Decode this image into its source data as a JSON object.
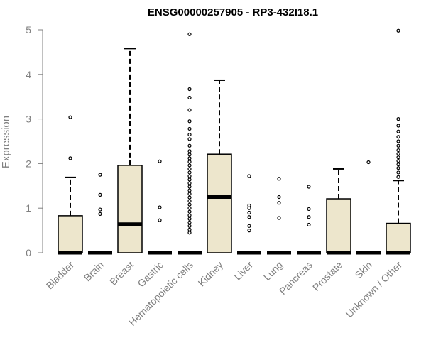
{
  "chart_data": {
    "type": "boxplot",
    "title": "ENSG00000257905 - RP3-432I18.1",
    "ylabel": "Expression",
    "xlabel": "",
    "ylim": [
      0,
      5
    ],
    "yticks": [
      "0",
      "1",
      "2",
      "3",
      "4",
      "5"
    ],
    "grid": false,
    "colors": {
      "box_fill": "#ede6cc",
      "box_stroke": "#000000",
      "median": "#000000",
      "axis": "#808080"
    },
    "categories": [
      "Bladder",
      "Brain",
      "Breast",
      "Gastric",
      "Hematopoietic cells",
      "Kidney",
      "Liver",
      "Lung",
      "Pancreas",
      "Prostate",
      "Skin",
      "Unknown / Other"
    ],
    "boxes": [
      {
        "q1": 0,
        "median": 0,
        "q3": 0.83,
        "whisker_low": 0,
        "whisker_high": 1.69,
        "outliers": [
          2.12,
          3.04
        ]
      },
      {
        "q1": 0,
        "median": 0,
        "q3": 0,
        "whisker_low": 0,
        "whisker_high": 0,
        "outliers": [
          0.87,
          0.97,
          1.3,
          1.75
        ]
      },
      {
        "q1": 0,
        "median": 0.64,
        "q3": 1.96,
        "whisker_low": 0,
        "whisker_high": 4.58,
        "outliers": []
      },
      {
        "q1": 0,
        "median": 0,
        "q3": 0,
        "whisker_low": 0,
        "whisker_high": 0,
        "outliers": [
          0.73,
          1.02,
          2.05
        ]
      },
      {
        "q1": 0,
        "median": 0,
        "q3": 0,
        "whisker_low": 0,
        "whisker_high": 0,
        "outliers": [
          0.45,
          0.52,
          0.6,
          0.68,
          0.76,
          0.84,
          0.92,
          1.0,
          1.08,
          1.16,
          1.24,
          1.32,
          1.4,
          1.48,
          1.56,
          1.64,
          1.72,
          1.8,
          1.88,
          1.96,
          2.04,
          2.12,
          2.2,
          2.28,
          2.4,
          2.55,
          2.65,
          2.78,
          2.95,
          3.2,
          3.48,
          3.67,
          4.9
        ]
      },
      {
        "q1": 0,
        "median": 1.25,
        "q3": 2.21,
        "whisker_low": 0,
        "whisker_high": 3.87,
        "outliers": []
      },
      {
        "q1": 0,
        "median": 0,
        "q3": 0,
        "whisker_low": 0,
        "whisker_high": 0,
        "outliers": [
          0.5,
          0.6,
          0.8,
          0.9,
          1.0,
          1.06,
          1.72
        ]
      },
      {
        "q1": 0,
        "median": 0,
        "q3": 0,
        "whisker_low": 0,
        "whisker_high": 0,
        "outliers": [
          0.78,
          1.12,
          1.25,
          1.66
        ]
      },
      {
        "q1": 0,
        "median": 0,
        "q3": 0,
        "whisker_low": 0,
        "whisker_high": 0,
        "outliers": [
          0.63,
          0.8,
          0.98,
          1.48
        ]
      },
      {
        "q1": 0,
        "median": 0,
        "q3": 1.21,
        "whisker_low": 0,
        "whisker_high": 1.88,
        "outliers": []
      },
      {
        "q1": 0,
        "median": 0,
        "q3": 0,
        "whisker_low": 0,
        "whisker_high": 0,
        "outliers": [
          2.03
        ]
      },
      {
        "q1": 0,
        "median": 0,
        "q3": 0.66,
        "whisker_low": 0,
        "whisker_high": 1.62,
        "outliers": [
          1.7,
          1.8,
          1.9,
          1.98,
          2.06,
          2.14,
          2.22,
          2.3,
          2.4,
          2.5,
          2.6,
          2.72,
          2.85,
          3.0,
          4.98
        ]
      }
    ]
  }
}
